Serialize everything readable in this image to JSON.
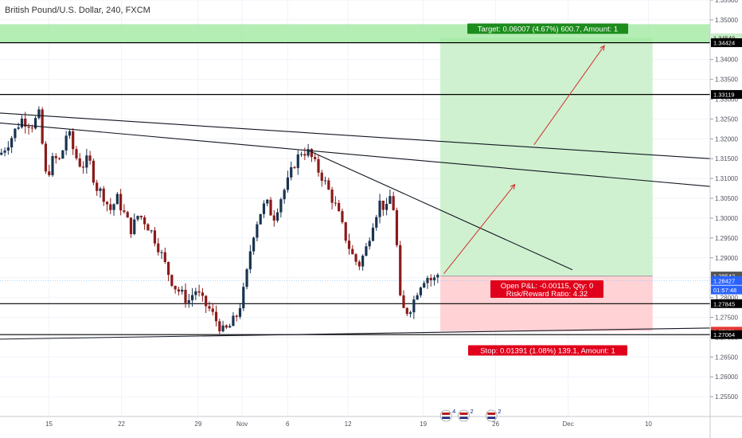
{
  "header": {
    "symbol_title": "British Pound/U.S. Dollar, 240, FXCM"
  },
  "chart_data": {
    "type": "candlestick",
    "title": "British Pound/U.S. Dollar, 240, FXCM",
    "ylim": [
      1.25,
      1.355
    ],
    "xlim": [
      0,
      100
    ],
    "y_ticks": [
      1.355,
      1.35,
      1.345,
      1.34,
      1.335,
      1.33,
      1.325,
      1.32,
      1.315,
      1.31,
      1.305,
      1.3,
      1.295,
      1.29,
      1.285,
      1.28,
      1.275,
      1.27,
      1.265,
      1.26,
      1.255
    ],
    "y_tick_labels": [
      "1.35500",
      "1.35000",
      "1.34500",
      "1.34000",
      "1.33500",
      "1.33000",
      "1.32500",
      "1.32000",
      "1.31500",
      "1.31000",
      "1.30500",
      "1.30000",
      "1.29500",
      "1.29000",
      "1.28500",
      "1.28000",
      "1.27500",
      "1.27000",
      "1.26500",
      "1.26000",
      "1.25500"
    ],
    "x_ticks": [
      {
        "label": "15",
        "x": 6.9
      },
      {
        "label": "22",
        "x": 17.1
      },
      {
        "label": "29",
        "x": 27.9
      },
      {
        "label": "Nov",
        "x": 34.1
      },
      {
        "label": "6",
        "x": 40.5
      },
      {
        "label": "12",
        "x": 49.0
      },
      {
        "label": "19",
        "x": 59.6
      },
      {
        "label": "26",
        "x": 69.8
      },
      {
        "label": "Dec",
        "x": 80.0
      },
      {
        "label": "10",
        "x": 91.3
      }
    ],
    "price_path": [
      [
        0.0,
        1.316
      ],
      [
        1.5,
        1.32
      ],
      [
        3.0,
        1.325
      ],
      [
        4.5,
        1.3235
      ],
      [
        5.5,
        1.326
      ],
      [
        6.5,
        1.31
      ],
      [
        7.5,
        1.315
      ],
      [
        8.5,
        1.3145
      ],
      [
        9.5,
        1.3225
      ],
      [
        10.5,
        1.316
      ],
      [
        11.5,
        1.313
      ],
      [
        12.5,
        1.315
      ],
      [
        13.5,
        1.308
      ],
      [
        14.5,
        1.306
      ],
      [
        15.5,
        1.302
      ],
      [
        16.5,
        1.305
      ],
      [
        17.5,
        1.301
      ],
      [
        18.5,
        1.297
      ],
      [
        19.5,
        1.301
      ],
      [
        20.5,
        1.299
      ],
      [
        21.5,
        1.296
      ],
      [
        22.5,
        1.292
      ],
      [
        23.5,
        1.287
      ],
      [
        24.5,
        1.283
      ],
      [
        25.5,
        1.281
      ],
      [
        26.5,
        1.279
      ],
      [
        27.5,
        1.282
      ],
      [
        28.5,
        1.279
      ],
      [
        29.5,
        1.277
      ],
      [
        30.5,
        1.274
      ],
      [
        31.5,
        1.2712
      ],
      [
        32.5,
        1.273
      ],
      [
        33.5,
        1.276
      ],
      [
        34.5,
        1.283
      ],
      [
        35.5,
        1.295
      ],
      [
        36.5,
        1.301
      ],
      [
        37.5,
        1.304
      ],
      [
        38.5,
        1.3
      ],
      [
        39.5,
        1.305
      ],
      [
        40.5,
        1.309
      ],
      [
        41.5,
        1.314
      ],
      [
        42.5,
        1.317
      ],
      [
        43.5,
        1.3165
      ],
      [
        44.5,
        1.313
      ],
      [
        45.5,
        1.31
      ],
      [
        46.5,
        1.306
      ],
      [
        47.5,
        1.302
      ],
      [
        48.5,
        1.296
      ],
      [
        49.5,
        1.291
      ],
      [
        50.5,
        1.288
      ],
      [
        51.5,
        1.292
      ],
      [
        52.5,
        1.299
      ],
      [
        53.5,
        1.304
      ],
      [
        54.5,
        1.302
      ],
      [
        55.0,
        1.306
      ],
      [
        55.7,
        1.3
      ],
      [
        56.2,
        1.28
      ],
      [
        57.0,
        1.276
      ],
      [
        58.0,
        1.278
      ],
      [
        59.0,
        1.283
      ],
      [
        60.0,
        1.2855
      ],
      [
        61.0,
        1.284
      ],
      [
        61.6,
        1.286
      ],
      [
        62.0,
        1.2843
      ]
    ],
    "horizontal_levels": [
      {
        "price": 1.34424,
        "label": "1.34424",
        "kind": "resistance"
      },
      {
        "price": 1.33119,
        "label": "1.33119",
        "kind": "resistance"
      },
      {
        "price": 1.27845,
        "label": "1.27845",
        "kind": "support"
      },
      {
        "price": 1.27064,
        "label": "1.27064",
        "kind": "support"
      }
    ],
    "target_zone": {
      "from": 1.34424,
      "to": 1.3489,
      "label": "1.34549"
    },
    "trendlines": [
      {
        "x1": 0.0,
        "y1": 1.3265,
        "x2": 100.0,
        "y2": 1.315
      },
      {
        "x1": 0.0,
        "y1": 1.324,
        "x2": 100.0,
        "y2": 1.308
      },
      {
        "x1": 43.5,
        "y1": 1.317,
        "x2": 80.6,
        "y2": 1.287
      },
      {
        "x1": 0.0,
        "y1": 1.2695,
        "x2": 100.0,
        "y2": 1.2723
      }
    ],
    "position": {
      "x_start": 62.0,
      "x_end": 91.9,
      "entry": 1.28542,
      "target": 1.34549,
      "stop": 1.27151,
      "target_text": "Target: 0.06007 (4.67%) 600.7, Amount: 1",
      "stop_text": "Stop: 0.01391 (1.08%) 139.1, Amount: 1",
      "pnl_text": "Open P&L: -0.00115, Qty: 0",
      "rr_text": "Risk/Reward Ratio: 4.32"
    },
    "projection_arrows": [
      {
        "x1": 62.5,
        "y1": 1.286,
        "x2": 72.5,
        "y2": 1.3085
      },
      {
        "x1": 75.2,
        "y1": 1.3185,
        "x2": 85.1,
        "y2": 1.3435
      }
    ],
    "price_tags": [
      {
        "label": "1.34549",
        "price": 1.34549,
        "bg": "#c8eec8",
        "fg": "#222222"
      },
      {
        "label": "1.34424",
        "price": 1.34424,
        "bg": "#000000",
        "fg": "#ffffff"
      },
      {
        "label": "1.33119",
        "price": 1.33119,
        "bg": "#000000",
        "fg": "#ffffff"
      },
      {
        "label": "1.28542",
        "price": 1.28542,
        "bg": "#555555",
        "fg": "#ffffff"
      },
      {
        "label": "1.28427",
        "price": 1.28427,
        "bg": "#2962ff",
        "fg": "#ffffff"
      },
      {
        "label": "01:57:48",
        "price": 1.2819,
        "bg": "#2962ff",
        "fg": "#ffffff"
      },
      {
        "label": "1.27845",
        "price": 1.27845,
        "bg": "#000000",
        "fg": "#ffffff"
      },
      {
        "label": "1.27151",
        "price": 1.27151,
        "bg": "#e53935",
        "fg": "#ffffff"
      },
      {
        "label": "1.27064",
        "price": 1.27064,
        "bg": "#000000",
        "fg": "#ffffff"
      }
    ],
    "event_flags": [
      {
        "x": 62.8,
        "count": "4"
      },
      {
        "x": 65.3,
        "count": "2"
      },
      {
        "x": 69.2,
        "count": "2"
      }
    ]
  },
  "colors": {
    "bull": "#1a3350",
    "bear": "#8b1a1a",
    "target_fill": "#c8eec8",
    "stop_fill": "#ffcdd2",
    "target_label_bg": "#1c8c1c",
    "stop_label_bg": "#e0001b",
    "arrow": "#d32f2f",
    "grid": "#f0f3fa"
  }
}
